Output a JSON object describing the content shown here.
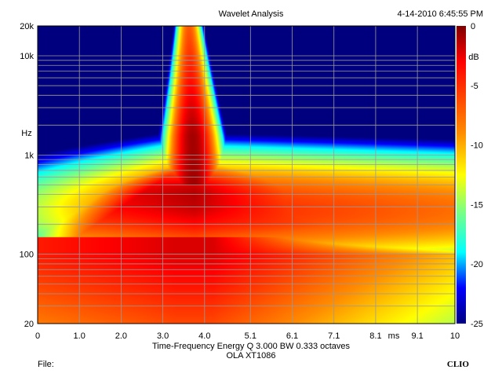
{
  "chart_data": {
    "type": "heatmap",
    "title": "Wavelet Analysis",
    "timestamp": "4-14-2010 6:45:55 PM",
    "subtitle": "Time-Frequency Energy  Q 3.000 BW 0.333 octaves",
    "caption": "OLA XT1086",
    "file_label": "File:",
    "brand": "CLIO",
    "xlabel": "ms",
    "ylabel": "Hz",
    "colorbar_label": "dB",
    "x_range": [
      0,
      10
    ],
    "y_range": [
      20,
      20000
    ],
    "y_scale": "log",
    "x_ticks": [
      {
        "value": 0,
        "label": "0"
      },
      {
        "value": 1,
        "label": "1.0"
      },
      {
        "value": 2,
        "label": "2.0"
      },
      {
        "value": 3,
        "label": "3.0"
      },
      {
        "value": 4,
        "label": "4.0"
      },
      {
        "value": 5.1,
        "label": "5.1"
      },
      {
        "value": 6.1,
        "label": "6.1"
      },
      {
        "value": 7.1,
        "label": "7.1"
      },
      {
        "value": 8.1,
        "label": "8.1"
      },
      {
        "value": 9.1,
        "label": "9.1"
      },
      {
        "value": 10,
        "label": "10"
      }
    ],
    "y_ticks": [
      {
        "value": 20,
        "label": "20"
      },
      {
        "value": 100,
        "label": "100"
      },
      {
        "value": 1000,
        "label": "1k"
      },
      {
        "value": 10000,
        "label": "10k"
      },
      {
        "value": 20000,
        "label": "20k"
      }
    ],
    "colorbar_range": [
      -25,
      0
    ],
    "colorbar_ticks": [
      {
        "value": 0,
        "label": "0"
      },
      {
        "value": -5,
        "label": "-5"
      },
      {
        "value": -10,
        "label": "-10"
      },
      {
        "value": -15,
        "label": "-15"
      },
      {
        "value": -20,
        "label": "-20"
      },
      {
        "value": -25,
        "label": "-25"
      }
    ],
    "colormap": [
      "#00007f",
      "#0000ff",
      "#00ffff",
      "#7fff7f",
      "#ffff00",
      "#ff7f00",
      "#ff0000",
      "#7f0000"
    ],
    "grid": true,
    "peak": {
      "time_ms": 3.75,
      "freq_hz": 400,
      "db": 0
    }
  }
}
